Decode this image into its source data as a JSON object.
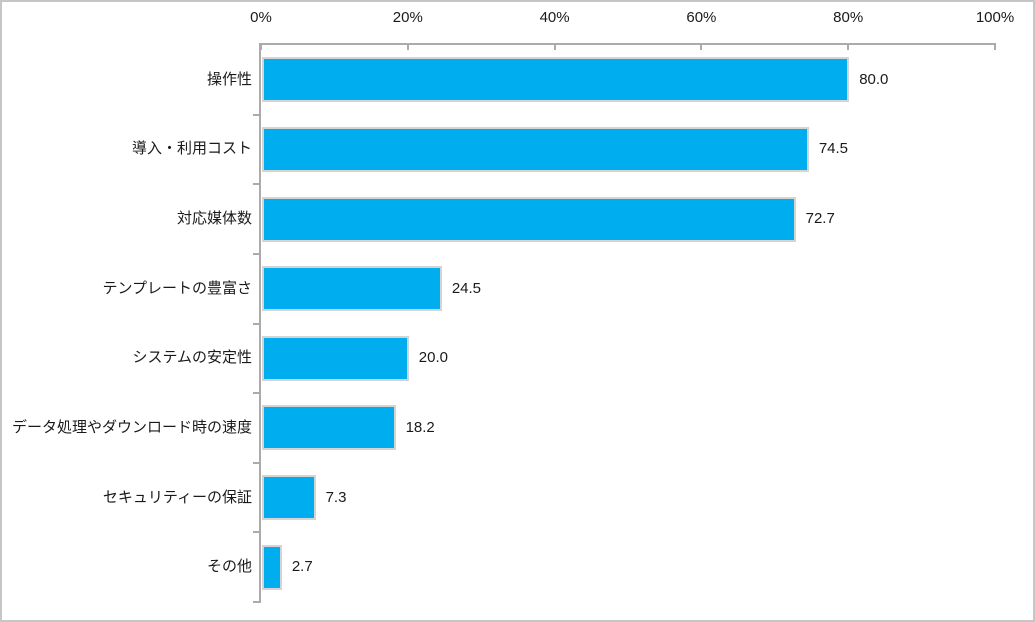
{
  "chart_data": {
    "type": "bar",
    "orientation": "horizontal",
    "title": "",
    "xlabel": "",
    "ylabel": "",
    "categories": [
      "操作性",
      "導入・利用コスト",
      "対応媒体数",
      "テンプレートの豊富さ",
      "システムの安定性",
      "データ処理やダウンロード時の速度",
      "セキュリティーの保証",
      "その他"
    ],
    "values": [
      80.0,
      74.5,
      72.7,
      24.5,
      20.0,
      18.2,
      7.3,
      2.7
    ],
    "value_labels": [
      "80.0",
      "74.5",
      "72.7",
      "24.5",
      "20.0",
      "18.2",
      "7.3",
      "2.7"
    ],
    "x_axis": {
      "position": "top",
      "min": 0,
      "max": 100,
      "tick_labels": [
        "0%",
        "20%",
        "40%",
        "60%",
        "80%",
        "100%"
      ],
      "tick_values": [
        0,
        20,
        40,
        60,
        80,
        100
      ]
    },
    "grid": false,
    "legend": null,
    "colors": {
      "bar_fill": "#00AEF0",
      "bar_border": "#D4D4D4",
      "axis_line": "#ABABAB",
      "text": "#1A1A1A",
      "frame_border": "#C6C6C6",
      "background": "#FFFFFF"
    }
  }
}
